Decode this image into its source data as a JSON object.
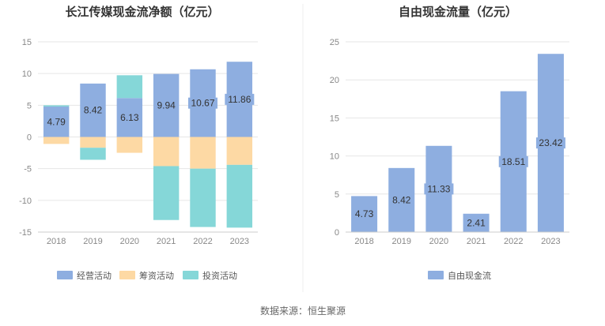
{
  "chart_data": [
    {
      "type": "bar",
      "stacked": true,
      "title": "长江传媒现金流净额（亿元）",
      "categories": [
        "2018",
        "2019",
        "2020",
        "2021",
        "2022",
        "2023"
      ],
      "ylim": [
        -15,
        15
      ],
      "yticks": [
        15,
        10,
        5,
        0,
        -5,
        -10,
        -15
      ],
      "grid": true,
      "legend_position": "bottom",
      "series": [
        {
          "name": "经营活动",
          "color": "#8eaee0",
          "values": [
            4.79,
            8.42,
            6.13,
            9.94,
            10.67,
            11.86
          ],
          "labeled": true
        },
        {
          "name": "筹资活动",
          "color": "#fdd9a4",
          "values": [
            -1.1,
            -1.7,
            -2.5,
            -4.6,
            -5.0,
            -4.4
          ],
          "labeled": false
        },
        {
          "name": "投资活动",
          "color": "#85d7d8",
          "values": [
            0.2,
            -1.9,
            3.6,
            -8.5,
            -9.2,
            -9.9
          ],
          "labeled": false
        }
      ]
    },
    {
      "type": "bar",
      "title": "自由现金流量（亿元）",
      "categories": [
        "2018",
        "2019",
        "2020",
        "2021",
        "2022",
        "2023"
      ],
      "ylim": [
        0,
        25
      ],
      "yticks": [
        25,
        20,
        15,
        10,
        5,
        0
      ],
      "grid": true,
      "legend_position": "bottom",
      "series": [
        {
          "name": "自由现金流",
          "color": "#8eaee0",
          "values": [
            4.73,
            8.42,
            11.33,
            2.41,
            18.51,
            23.42
          ],
          "labeled": true
        }
      ]
    }
  ],
  "source": "数据来源：恒生聚源",
  "colors": {
    "grid": "#e6e6e6",
    "axis": "#cccccc",
    "divider": "#e8e8e8"
  }
}
